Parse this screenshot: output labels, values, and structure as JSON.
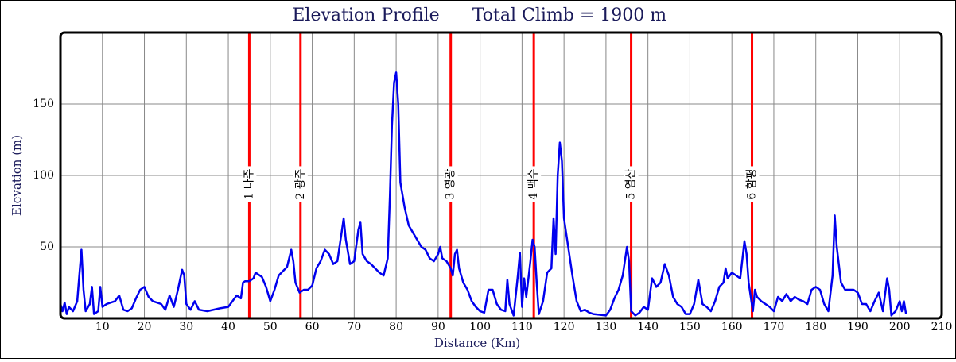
{
  "chart_data": {
    "type": "line",
    "title": "Elevation Profile",
    "subtitle": "Total Climb = 1900 m",
    "x_label": "Distance (Km)",
    "y_label": "Elevation (m)",
    "xlim": [
      0,
      210
    ],
    "ylim": [
      0,
      200
    ],
    "xticks": [
      10,
      20,
      30,
      40,
      50,
      60,
      70,
      80,
      90,
      100,
      110,
      120,
      130,
      140,
      150,
      160,
      170,
      180,
      190,
      200,
      210
    ],
    "yticks": [
      50,
      100,
      150
    ],
    "grid": true,
    "annotation_color": "#ff0000",
    "annotations": [
      {
        "x": 45,
        "label": "1 나주"
      },
      {
        "x": 57.2,
        "label": "2 광주"
      },
      {
        "x": 93,
        "label": "3 영광"
      },
      {
        "x": 112.8,
        "label": "4 백수"
      },
      {
        "x": 136,
        "label": "5 염산"
      },
      {
        "x": 164.8,
        "label": "6 함평"
      }
    ],
    "series": [
      {
        "name": "Elevation",
        "color": "#0000ee",
        "x": [
          0,
          0.5,
          1,
          1.5,
          2,
          3,
          4,
          4.5,
          5,
          5.5,
          6,
          7,
          7.5,
          8,
          9,
          9.5,
          10,
          11,
          12,
          13,
          14,
          15,
          16,
          17,
          18,
          19,
          20,
          21,
          22,
          23,
          24,
          25,
          26,
          27,
          28,
          29,
          29.5,
          30,
          31,
          32,
          33,
          35,
          38,
          40,
          41,
          42,
          43,
          43.5,
          44,
          45,
          46,
          46.5,
          48,
          49,
          50,
          51,
          52,
          53,
          54,
          55,
          55.5,
          56,
          57,
          58,
          59,
          60,
          61,
          62,
          63,
          64,
          65,
          66,
          67,
          67.5,
          68,
          69,
          70,
          71,
          71.5,
          72,
          73,
          74,
          75,
          76,
          77,
          78,
          78.5,
          79,
          79.5,
          80,
          80.5,
          81,
          82,
          83,
          84,
          85,
          86,
          87,
          88,
          89,
          90,
          90.5,
          91,
          92,
          93,
          93.5,
          94,
          94.5,
          95,
          96,
          97,
          98,
          99,
          100,
          101,
          102,
          103,
          104,
          105,
          106,
          106.5,
          107,
          108,
          109,
          109.5,
          110,
          110.5,
          111,
          112,
          112.5,
          113,
          113.5,
          114,
          115,
          116,
          117,
          117.5,
          118,
          118.5,
          119,
          119.5,
          120,
          121,
          122,
          123,
          124,
          125,
          126,
          127,
          130,
          131,
          132,
          133,
          134,
          135,
          135.5,
          136,
          137,
          138,
          139,
          140,
          141,
          142,
          143,
          144,
          145,
          146,
          147,
          148,
          149,
          150,
          151,
          152,
          153,
          154,
          155,
          156,
          157,
          158,
          158.5,
          159,
          160,
          161,
          162,
          163,
          163.5,
          164,
          165,
          165.5,
          166,
          167,
          168,
          169,
          170,
          171,
          172,
          173,
          174,
          175,
          176,
          177,
          178,
          179,
          180,
          181,
          182,
          183,
          184,
          184.5,
          185,
          186,
          187,
          188,
          189,
          190,
          191,
          192,
          193,
          194,
          195,
          196,
          197,
          197.5,
          198,
          199,
          200,
          200.5,
          201,
          201.5
        ],
        "values": [
          10,
          5,
          11,
          3,
          8,
          5,
          12,
          30,
          48,
          20,
          5,
          10,
          22,
          3,
          5,
          22,
          8,
          10,
          11,
          12,
          16,
          6,
          5,
          7,
          14,
          20,
          22,
          15,
          12,
          11,
          10,
          6,
          16,
          8,
          20,
          34,
          30,
          10,
          6,
          12,
          6,
          5,
          7,
          8,
          12,
          16,
          14,
          25,
          26,
          26,
          28,
          32,
          29,
          22,
          12,
          20,
          30,
          33,
          36,
          48,
          40,
          25,
          18,
          20,
          20,
          23,
          35,
          40,
          48,
          45,
          38,
          40,
          60,
          70,
          55,
          38,
          40,
          62,
          67,
          45,
          40,
          38,
          35,
          32,
          30,
          42,
          85,
          135,
          165,
          172,
          150,
          95,
          78,
          65,
          60,
          55,
          50,
          48,
          42,
          40,
          45,
          50,
          42,
          40,
          35,
          30,
          45,
          48,
          35,
          25,
          20,
          12,
          8,
          5,
          4,
          20,
          20,
          10,
          6,
          5,
          27,
          10,
          2,
          30,
          46,
          8,
          28,
          15,
          40,
          55,
          50,
          25,
          3,
          12,
          32,
          35,
          70,
          45,
          100,
          123,
          110,
          70,
          50,
          30,
          12,
          5,
          6,
          4,
          3,
          2,
          6,
          14,
          20,
          30,
          50,
          40,
          5,
          2,
          4,
          8,
          6,
          28,
          22,
          25,
          38,
          30,
          15,
          10,
          8,
          3,
          3,
          10,
          27,
          10,
          8,
          5,
          12,
          22,
          25,
          35,
          28,
          32,
          30,
          28,
          54,
          45,
          25,
          5,
          20,
          15,
          12,
          10,
          8,
          5,
          15,
          12,
          17,
          12,
          15,
          13,
          12,
          10,
          20,
          22,
          20,
          10,
          5,
          30,
          72,
          50,
          25,
          20,
          20,
          20,
          18,
          10,
          10,
          5,
          12,
          18,
          5,
          28,
          20,
          2,
          5,
          12,
          5,
          12,
          3
        ]
      }
    ]
  }
}
